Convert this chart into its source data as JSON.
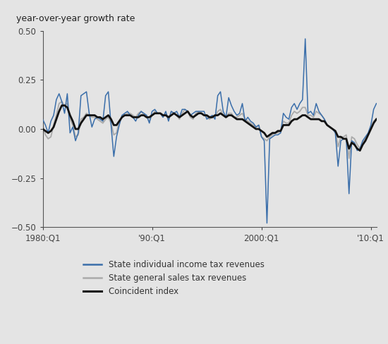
{
  "title_label": "year-over-year growth rate",
  "background_color": "#e4e4e4",
  "plot_bg_color": "#e4e4e4",
  "ylim": [
    -0.5,
    0.5
  ],
  "yticks": [
    -0.5,
    -0.25,
    0.0,
    0.25,
    0.5
  ],
  "xtick_labels": [
    "1980:Q1",
    "'90:Q1",
    "2000:Q1",
    "'10:Q1"
  ],
  "xtick_positions": [
    0,
    40,
    80,
    120
  ],
  "legend_entries": [
    "State individual income tax revenues",
    "State general sales tax revenues",
    "Coincident index"
  ],
  "legend_colors": [
    "#3a6eaa",
    "#aaaaaa",
    "#111111"
  ],
  "line_color_income": "#3a6eaa",
  "line_color_sales": "#aaaaaa",
  "line_color_coincident": "#111111",
  "income_tax": [
    0.05,
    0.02,
    -0.02,
    0.04,
    0.07,
    0.15,
    0.18,
    0.14,
    0.08,
    0.18,
    -0.02,
    0.01,
    -0.06,
    -0.02,
    0.17,
    0.18,
    0.19,
    0.08,
    0.01,
    0.05,
    0.06,
    0.05,
    0.04,
    0.17,
    0.19,
    0.02,
    -0.14,
    -0.04,
    0.02,
    0.07,
    0.08,
    0.09,
    0.07,
    0.06,
    0.04,
    0.07,
    0.09,
    0.08,
    0.07,
    0.03,
    0.09,
    0.1,
    0.08,
    0.08,
    0.06,
    0.09,
    0.04,
    0.09,
    0.08,
    0.09,
    0.06,
    0.1,
    0.1,
    0.09,
    0.07,
    0.08,
    0.09,
    0.09,
    0.09,
    0.09,
    0.05,
    0.06,
    0.07,
    0.05,
    0.17,
    0.19,
    0.09,
    0.06,
    0.16,
    0.12,
    0.09,
    0.07,
    0.08,
    0.13,
    0.04,
    0.06,
    0.04,
    0.03,
    0.01,
    0.02,
    -0.04,
    -0.06,
    -0.48,
    -0.05,
    -0.04,
    -0.03,
    -0.03,
    -0.02,
    0.08,
    0.06,
    0.05,
    0.11,
    0.13,
    0.1,
    0.13,
    0.15,
    0.46,
    0.08,
    0.09,
    0.07,
    0.13,
    0.09,
    0.07,
    0.05,
    0.02,
    0.01,
    0.0,
    -0.02,
    -0.19,
    -0.06,
    -0.05,
    -0.05,
    -0.33,
    -0.06,
    -0.07,
    -0.11,
    -0.1,
    -0.06,
    -0.04,
    -0.02,
    0.02,
    0.1,
    0.13
  ],
  "sales_tax": [
    0.02,
    -0.03,
    -0.05,
    -0.04,
    0.02,
    0.07,
    0.13,
    0.14,
    0.12,
    0.13,
    0.05,
    0.02,
    -0.04,
    -0.03,
    0.05,
    0.06,
    0.08,
    0.07,
    0.06,
    0.06,
    0.05,
    0.04,
    0.03,
    0.05,
    0.06,
    0.03,
    -0.03,
    -0.02,
    0.04,
    0.06,
    0.07,
    0.08,
    0.08,
    0.07,
    0.06,
    0.08,
    0.09,
    0.07,
    0.06,
    0.04,
    0.07,
    0.09,
    0.08,
    0.08,
    0.06,
    0.08,
    0.05,
    0.09,
    0.08,
    0.07,
    0.05,
    0.08,
    0.1,
    0.09,
    0.06,
    0.05,
    0.08,
    0.09,
    0.08,
    0.07,
    0.06,
    0.05,
    0.06,
    0.06,
    0.09,
    0.1,
    0.07,
    0.06,
    0.08,
    0.08,
    0.06,
    0.06,
    0.07,
    0.08,
    0.05,
    0.04,
    0.03,
    0.02,
    0.01,
    0.02,
    -0.04,
    -0.05,
    -0.06,
    -0.04,
    -0.03,
    -0.02,
    -0.02,
    -0.01,
    0.04,
    0.03,
    0.03,
    0.07,
    0.09,
    0.08,
    0.09,
    0.11,
    0.11,
    0.07,
    0.07,
    0.06,
    0.09,
    0.08,
    0.07,
    0.05,
    0.02,
    0.01,
    0.0,
    -0.01,
    -0.09,
    -0.04,
    -0.04,
    -0.03,
    -0.15,
    -0.04,
    -0.05,
    -0.08,
    -0.1,
    -0.07,
    -0.05,
    -0.03,
    0.01,
    0.04,
    0.05
  ],
  "coincident": [
    0.0,
    -0.01,
    -0.02,
    -0.01,
    0.01,
    0.05,
    0.09,
    0.12,
    0.12,
    0.11,
    0.07,
    0.04,
    0.0,
    0.0,
    0.03,
    0.05,
    0.07,
    0.07,
    0.07,
    0.07,
    0.06,
    0.06,
    0.05,
    0.06,
    0.07,
    0.05,
    0.02,
    0.02,
    0.04,
    0.06,
    0.07,
    0.07,
    0.07,
    0.06,
    0.06,
    0.06,
    0.07,
    0.07,
    0.06,
    0.06,
    0.07,
    0.08,
    0.08,
    0.08,
    0.07,
    0.07,
    0.06,
    0.07,
    0.08,
    0.07,
    0.06,
    0.07,
    0.08,
    0.09,
    0.07,
    0.06,
    0.07,
    0.08,
    0.08,
    0.07,
    0.07,
    0.06,
    0.06,
    0.07,
    0.07,
    0.08,
    0.07,
    0.06,
    0.07,
    0.07,
    0.06,
    0.05,
    0.05,
    0.05,
    0.04,
    0.03,
    0.02,
    0.01,
    0.0,
    0.0,
    -0.01,
    -0.02,
    -0.04,
    -0.03,
    -0.02,
    -0.02,
    -0.01,
    -0.01,
    0.02,
    0.02,
    0.02,
    0.04,
    0.05,
    0.05,
    0.06,
    0.07,
    0.07,
    0.06,
    0.05,
    0.05,
    0.05,
    0.05,
    0.04,
    0.04,
    0.02,
    0.01,
    0.0,
    -0.01,
    -0.04,
    -0.04,
    -0.05,
    -0.05,
    -0.1,
    -0.07,
    -0.08,
    -0.1,
    -0.11,
    -0.08,
    -0.06,
    -0.03,
    0.0,
    0.03,
    0.05
  ]
}
